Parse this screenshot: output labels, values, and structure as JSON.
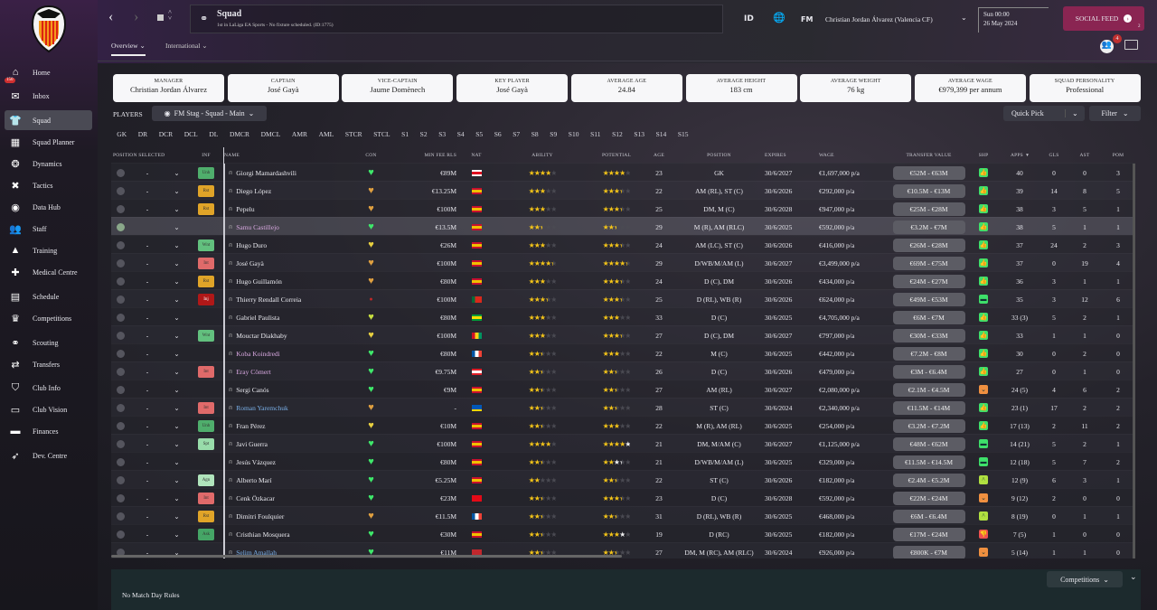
{
  "sidebar": {
    "items": [
      {
        "label": "Home",
        "icon": "home-icon",
        "g": "⌂"
      },
      {
        "label": "Inbox",
        "icon": "envelope-icon",
        "g": "✉",
        "badge": "150"
      },
      {
        "label": "Squad",
        "icon": "shirt-icon",
        "g": "👕",
        "active": true
      },
      {
        "label": "Squad Planner",
        "icon": "planner-icon",
        "g": "▦"
      },
      {
        "label": "Dynamics",
        "icon": "dynamics-icon",
        "g": "❂"
      },
      {
        "label": "Tactics",
        "icon": "tactics-icon",
        "g": "✖"
      },
      {
        "label": "Data Hub",
        "icon": "data-hub-icon",
        "g": "◉"
      },
      {
        "label": "Staff",
        "icon": "staff-icon",
        "g": "👥"
      },
      {
        "label": "Training",
        "icon": "training-icon",
        "g": "▲"
      },
      {
        "label": "Medical Centre",
        "icon": "medical-icon",
        "g": "✚"
      },
      {
        "label": "Schedule",
        "icon": "calendar-icon",
        "g": "▤"
      },
      {
        "label": "Competitions",
        "icon": "trophy-icon",
        "g": "♛"
      },
      {
        "label": "Scouting",
        "icon": "binoculars-icon",
        "g": "⚭"
      },
      {
        "label": "Transfers",
        "icon": "transfers-icon",
        "g": "⇄"
      },
      {
        "label": "Club Info",
        "icon": "club-icon",
        "g": "⛉"
      },
      {
        "label": "Club Vision",
        "icon": "vision-icon",
        "g": "▭"
      },
      {
        "label": "Finances",
        "icon": "finances-icon",
        "g": "▬"
      },
      {
        "label": "Dev. Centre",
        "icon": "dev-centre-icon",
        "g": "➶"
      }
    ]
  },
  "header": {
    "title": "Squad",
    "subtitle": "1st in LaLiga EA Sports - No fixture scheduled. (ID:1775)",
    "id_label": "ID",
    "fm_label": "FM",
    "manager": "Christian Jordan Álvarez (Valencia CF)",
    "date_day": "Sun 00:00",
    "date": "26 May 2024",
    "social_feed": "SOCIAL FEED",
    "social_count": "2",
    "notif_count": "4"
  },
  "tabs": [
    {
      "label": "Overview"
    },
    {
      "label": "International"
    }
  ],
  "cards": [
    {
      "label": "MANAGER",
      "value": "Christian Jordan Álvarez"
    },
    {
      "label": "CAPTAIN",
      "value": "José Gayà"
    },
    {
      "label": "VICE-CAPTAIN",
      "value": "Jaume Domènech"
    },
    {
      "label": "KEY PLAYER",
      "value": "José Gayà"
    },
    {
      "label": "AVERAGE AGE",
      "value": "24.84"
    },
    {
      "label": "AVERAGE HEIGHT",
      "value": "183 cm"
    },
    {
      "label": "AVERAGE WEIGHT",
      "value": "76 kg"
    },
    {
      "label": "AVERAGE WAGE",
      "value": "€979,399 per annum"
    },
    {
      "label": "SQUAD PERSONALITY",
      "value": "Professional"
    }
  ],
  "players": {
    "label": "PLAYERS",
    "view": "FM Stag - Squad - Main",
    "quick_pick": "Quick Pick",
    "filter": "Filter"
  },
  "positions": [
    "GK",
    "DR",
    "DCR",
    "DCL",
    "DL",
    "DMCR",
    "DMCL",
    "AMR",
    "AML",
    "STCR",
    "STCL",
    "S1",
    "S2",
    "S3",
    "S4",
    "S5",
    "S6",
    "S7",
    "S8",
    "S9",
    "S10",
    "S11",
    "S12",
    "S13",
    "S14",
    "S15"
  ],
  "columns": {
    "pos_sel": "POSITION SELECTED",
    "inf": "INF",
    "name": "NAME",
    "con": "CON",
    "fee": "MIN FEE RLS",
    "nat": "NAT",
    "ability": "ABILITY",
    "potential": "POTENTIAL",
    "age": "AGE",
    "position": "POSITION",
    "expires": "EXPIRES",
    "wage": "WAGE",
    "tv": "TRANSFER VALUE",
    "shp": "SHP",
    "apps": "APPS",
    "gls": "GLS",
    "ast": "AST",
    "pom": "POM"
  },
  "colors": {
    "inf": {
      "Unh": "#4fae6c",
      "Rst": "#e0a428",
      "Wnt": "#62c07e",
      "Int": "#e06a6a",
      "Inj": "#b01818",
      "Spt": "#98dcaa",
      "Agn": "#b0e4bc",
      "Ask": "#45a566"
    },
    "con": {
      "green": "#3ee86a",
      "orange": "#e0a040",
      "yellow": "#e8d040",
      "lime": "#c8e040",
      "red": "#c02828"
    },
    "shp": {
      "up": "#3ee06a",
      "down": "#f09040",
      "neutral": "#3ee06a",
      "rise": "#b0e040",
      "bad": "#f05050"
    },
    "flag": {
      "ESP": [
        "#c8102e",
        "#f1bf00",
        "#c8102e"
      ],
      "GEO": [
        "#ffffff",
        "#e01020",
        "#ffffff"
      ],
      "POR": [
        "#046a38",
        "#da291c",
        "#da291c"
      ],
      "BRA": [
        "#009b3a",
        "#fedf00",
        "#009b3a"
      ],
      "GUI": [
        "#ce1126",
        "#fcd116",
        "#009460"
      ],
      "FRA": [
        "#0055a4",
        "#ffffff",
        "#ef4135"
      ],
      "SUI": [
        "#e0202a",
        "#ffffff",
        "#e0202a"
      ],
      "UKR": [
        "#0057b7",
        "#0057b7",
        "#ffd700"
      ],
      "TUR": [
        "#e30a17",
        "#e30a17",
        "#e30a17"
      ],
      "MAR": [
        "#c1272d",
        "#c1272d",
        "#c1272d"
      ]
    }
  },
  "rows": [
    {
      "sel": "-",
      "inf": "Unh",
      "name": "Giorgi Mamardashvili",
      "con": "green",
      "fee": "€89M",
      "flag": "GEO",
      "ab": 4,
      "pot": [
        4,
        4
      ],
      "age": "23",
      "pos": "GK",
      "exp": "30/6/2027",
      "wage": "€1,697,000 p/a",
      "tv": "€52M - €63M",
      "shp": "up",
      "apps": "40",
      "gls": "0",
      "ast": "0",
      "pom": "3"
    },
    {
      "sel": "-",
      "inf": "Rst",
      "name": "Diego López",
      "con": "orange",
      "fee": "€13.25M",
      "flag": "ESP",
      "ab": 3,
      "pot": [
        3.5,
        3.5
      ],
      "age": "22",
      "pos": "AM (RL), ST (C)",
      "exp": "30/6/2026",
      "wage": "€292,000 p/a",
      "tv": "€10.5M - €13M",
      "shp": "up",
      "apps": "39",
      "gls": "14",
      "ast": "8",
      "pom": "5"
    },
    {
      "sel": "-",
      "inf": "Rst",
      "name": "Pepelu",
      "con": "orange",
      "fee": "€100M",
      "flag": "ESP",
      "ab": 3,
      "pot": [
        3.5,
        3.5
      ],
      "age": "25",
      "pos": "DM, M (C)",
      "exp": "30/6/2028",
      "wage": "€947,000 p/a",
      "tv": "€25M - €28M",
      "shp": "up",
      "apps": "38",
      "gls": "3",
      "ast": "5",
      "pom": "1"
    },
    {
      "sel": "",
      "inf": "",
      "name": "Samu Castillejo",
      "nameColor": "#d8a8e0",
      "selected": true,
      "con": "green",
      "fee": "€13.5M",
      "flag": "ESP",
      "ab": 2.5,
      "pot": [
        2.5,
        2.5
      ],
      "age": "29",
      "pos": "M (R), AM (RLC)",
      "exp": "30/6/2025",
      "wage": "€592,000 p/a",
      "tv": "€3.2M - €7M",
      "shp": "up",
      "apps": "38",
      "gls": "5",
      "ast": "1",
      "pom": "1"
    },
    {
      "sel": "-",
      "inf": "Wnt",
      "name": "Hugo Duro",
      "con": "yellow",
      "fee": "€26M",
      "flag": "ESP",
      "ab": 3,
      "pot": [
        3.5,
        3.5
      ],
      "age": "24",
      "pos": "AM (LC), ST (C)",
      "exp": "30/6/2026",
      "wage": "€416,000 p/a",
      "tv": "€26M - €28M",
      "shp": "up",
      "apps": "37",
      "gls": "24",
      "ast": "2",
      "pom": "3"
    },
    {
      "sel": "-",
      "inf": "Int",
      "name": "José Gayà",
      "con": "orange",
      "fee": "€100M",
      "flag": "ESP",
      "ab": 4.5,
      "pot": [
        4.5,
        4.5
      ],
      "age": "29",
      "pos": "D/WB/M/AM (L)",
      "exp": "30/6/2027",
      "wage": "€3,499,000 p/a",
      "tv": "€69M - €75M",
      "shp": "up",
      "apps": "37",
      "gls": "0",
      "ast": "19",
      "pom": "4"
    },
    {
      "sel": "-",
      "inf": "Rst",
      "name": "Hugo Guillamón",
      "con": "orange",
      "fee": "€80M",
      "flag": "ESP",
      "ab": 3,
      "pot": [
        3.5,
        3.5
      ],
      "age": "24",
      "pos": "D (C), DM",
      "exp": "30/6/2026",
      "wage": "€434,000 p/a",
      "tv": "€24M - €27M",
      "shp": "up",
      "apps": "36",
      "gls": "3",
      "ast": "1",
      "pom": "1"
    },
    {
      "sel": "-",
      "inf": "Inj",
      "name": "Thierry Rendall Correia",
      "con": "red",
      "fee": "€100M",
      "flag": "POR",
      "ab": 3.5,
      "pot": [
        3.5,
        3.5
      ],
      "age": "25",
      "pos": "D (RL), WB (R)",
      "exp": "30/6/2026",
      "wage": "€624,000 p/a",
      "tv": "€49M - €53M",
      "shp": "neutral",
      "apps": "35",
      "gls": "3",
      "ast": "12",
      "pom": "6"
    },
    {
      "sel": "-",
      "inf": "",
      "name": "Gabriel Paulista",
      "con": "lime",
      "fee": "€80M",
      "flag": "BRA",
      "ab": 3,
      "pot": [
        3,
        3
      ],
      "age": "33",
      "pos": "D (C)",
      "exp": "30/6/2025",
      "wage": "€4,705,000 p/a",
      "tv": "€6M - €7M",
      "shp": "up",
      "apps": "33 (3)",
      "gls": "5",
      "ast": "2",
      "pom": "1"
    },
    {
      "sel": "-",
      "inf": "Wnt",
      "name": "Mouctar Diakhaby",
      "con": "yellow",
      "fee": "€100M",
      "flag": "GUI",
      "ab": 3,
      "pot": [
        3.5,
        3.5
      ],
      "age": "27",
      "pos": "D (C), DM",
      "exp": "30/6/2027",
      "wage": "€797,000 p/a",
      "tv": "€30M - €33M",
      "shp": "up",
      "apps": "33",
      "gls": "1",
      "ast": "1",
      "pom": "0"
    },
    {
      "sel": "-",
      "inf": "",
      "name": "Koba Koindredi",
      "nameColor": "#d8a8e0",
      "con": "green",
      "fee": "€80M",
      "flag": "FRA",
      "ab": 2.5,
      "pot": [
        3,
        3
      ],
      "age": "22",
      "pos": "M (C)",
      "exp": "30/6/2025",
      "wage": "€442,000 p/a",
      "tv": "€7.2M - €8M",
      "shp": "up",
      "apps": "30",
      "gls": "0",
      "ast": "2",
      "pom": "0"
    },
    {
      "sel": "-",
      "inf": "Int",
      "name": "Eray Cömert",
      "nameColor": "#d8a8e0",
      "con": "green",
      "fee": "€9.75M",
      "flag": "SUI",
      "ab": 2.5,
      "pot": [
        2.5,
        2.5
      ],
      "age": "26",
      "pos": "D (C)",
      "exp": "30/6/2026",
      "wage": "€479,000 p/a",
      "tv": "€3M - €6.4M",
      "shp": "up",
      "apps": "27",
      "gls": "0",
      "ast": "1",
      "pom": "0"
    },
    {
      "sel": "-",
      "inf": "",
      "name": "Sergi Canós",
      "con": "green",
      "fee": "€9M",
      "flag": "ESP",
      "ab": 2.5,
      "pot": [
        2.5,
        2.5
      ],
      "age": "27",
      "pos": "AM (RL)",
      "exp": "30/6/2027",
      "wage": "€2,080,000 p/a",
      "tv": "€2.1M - €4.5M",
      "shp": "down",
      "apps": "24 (5)",
      "gls": "4",
      "ast": "6",
      "pom": "2"
    },
    {
      "sel": "-",
      "inf": "Int",
      "name": "Roman Yaremchuk",
      "nameColor": "#7ab0e8",
      "con": "orange",
      "fee": "-",
      "flag": "UKR",
      "ab": 2.5,
      "pot": [
        2.5,
        2.5
      ],
      "age": "28",
      "pos": "ST (C)",
      "exp": "30/6/2024",
      "wage": "€2,340,000 p/a",
      "tv": "€11.5M - €14M",
      "shp": "up",
      "apps": "23 (1)",
      "gls": "17",
      "ast": "2",
      "pom": "2"
    },
    {
      "sel": "-",
      "inf": "Unh",
      "name": "Fran Pérez",
      "con": "yellow",
      "fee": "€10M",
      "flag": "ESP",
      "ab": 2.5,
      "pot": [
        3,
        3
      ],
      "age": "22",
      "pos": "M (R), AM (RL)",
      "exp": "30/6/2025",
      "wage": "€254,000 p/a",
      "tv": "€3.2M - €7.2M",
      "shp": "up",
      "apps": "17 (13)",
      "gls": "2",
      "ast": "11",
      "pom": "2"
    },
    {
      "sel": "-",
      "inf": "Spt",
      "name": "Javi Guerra",
      "con": "green",
      "fee": "€100M",
      "flag": "ESP",
      "ab": 4,
      "pot": [
        4,
        5
      ],
      "age": "21",
      "pos": "DM, M/AM (C)",
      "exp": "30/6/2027",
      "wage": "€1,125,000 p/a",
      "tv": "€48M - €62M",
      "shp": "neutral",
      "apps": "14 (21)",
      "gls": "5",
      "ast": "2",
      "pom": "1"
    },
    {
      "sel": "-",
      "inf": "",
      "name": "Jesús Vázquez",
      "con": "green",
      "fee": "€80M",
      "flag": "ESP",
      "ab": 2.5,
      "pot": [
        2,
        3.5
      ],
      "age": "21",
      "pos": "D/WB/M/AM (L)",
      "exp": "30/6/2025",
      "wage": "€329,000 p/a",
      "tv": "€11.5M - €14.5M",
      "shp": "neutral",
      "apps": "12 (18)",
      "gls": "5",
      "ast": "7",
      "pom": "2"
    },
    {
      "sel": "-",
      "inf": "Agn",
      "name": "Alberto Marí",
      "con": "green",
      "fee": "€5.25M",
      "flag": "ESP",
      "ab": 2,
      "pot": [
        2.5,
        2.5
      ],
      "age": "22",
      "pos": "ST (C)",
      "exp": "30/6/2026",
      "wage": "€182,000 p/a",
      "tv": "€2.4M - €5.2M",
      "shp": "rise",
      "apps": "12 (9)",
      "gls": "6",
      "ast": "3",
      "pom": "1"
    },
    {
      "sel": "-",
      "inf": "Int",
      "name": "Cenk Özkacar",
      "con": "green",
      "fee": "€23M",
      "flag": "TUR",
      "ab": 2.5,
      "pot": [
        3.5,
        3.5
      ],
      "age": "23",
      "pos": "D (C)",
      "exp": "30/6/2028",
      "wage": "€592,000 p/a",
      "tv": "€22M - €24M",
      "shp": "down",
      "apps": "9 (12)",
      "gls": "2",
      "ast": "0",
      "pom": "0"
    },
    {
      "sel": "-",
      "inf": "Rst",
      "name": "Dimitri Foulquier",
      "con": "orange",
      "fee": "€11.5M",
      "flag": "FRA",
      "ab": 2.5,
      "pot": [
        2.5,
        2.5
      ],
      "age": "31",
      "pos": "D (RL), WB (R)",
      "exp": "30/6/2025",
      "wage": "€468,000 p/a",
      "tv": "€6M - €6.4M",
      "shp": "rise",
      "apps": "8 (19)",
      "gls": "0",
      "ast": "1",
      "pom": "1"
    },
    {
      "sel": "-",
      "inf": "Ask",
      "name": "Cristhian Mosquera",
      "con": "green",
      "fee": "€30M",
      "flag": "ESP",
      "ab": 2.5,
      "pot": [
        3,
        4
      ],
      "age": "19",
      "pos": "D (RC)",
      "exp": "30/6/2025",
      "wage": "€182,000 p/a",
      "tv": "€17M - €24M",
      "shp": "bad",
      "apps": "7 (5)",
      "gls": "1",
      "ast": "0",
      "pom": "0"
    },
    {
      "sel": "-",
      "inf": "",
      "name": "Selim Amallah",
      "nameColor": "#7ab0e8",
      "con": "green",
      "fee": "€11M",
      "flag": "MAR",
      "ab": 2.5,
      "pot": [
        2.5,
        2.5
      ],
      "age": "27",
      "pos": "DM, M (RC), AM (RLC)",
      "exp": "30/6/2024",
      "wage": "€926,000 p/a",
      "tv": "€800K - €7M",
      "shp": "down",
      "apps": "5 (14)",
      "gls": "1",
      "ast": "1",
      "pom": "0"
    }
  ],
  "bottom": {
    "rules": "No Match Day Rules",
    "competitions": "Competitions"
  }
}
